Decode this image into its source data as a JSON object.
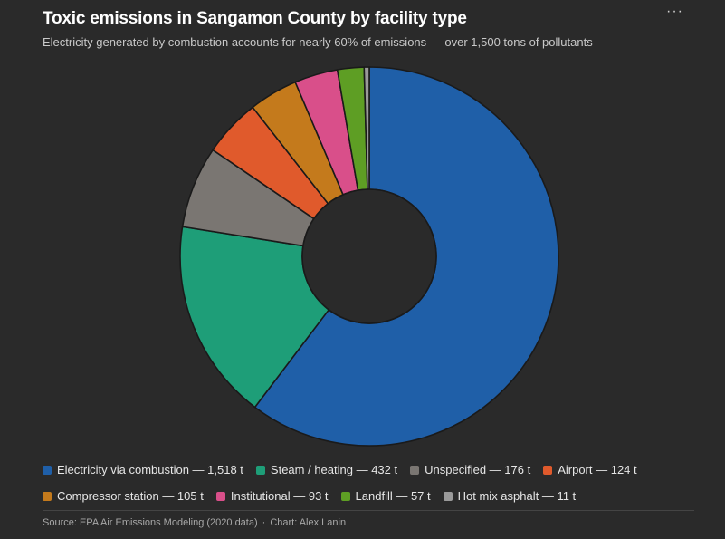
{
  "header": {
    "title": "Toxic emissions in Sangamon County by facility type",
    "subtitle": "Electricity generated by combustion accounts for nearly 60% of emissions — over 1,500 tons of pollutants",
    "menu_label": "···"
  },
  "chart_data": {
    "type": "pie",
    "variant": "donut",
    "title": "Toxic emissions in Sangamon County by facility type",
    "unit": "t",
    "categories": [
      "Electricity via combustion",
      "Steam / heating",
      "Unspecified",
      "Airport",
      "Compressor station",
      "Institutional",
      "Landfill",
      "Hot mix asphalt"
    ],
    "values": [
      1518,
      432,
      176,
      124,
      105,
      93,
      57,
      11
    ],
    "colors": [
      "#1f5fa8",
      "#1e9e78",
      "#7a7672",
      "#e05a2c",
      "#c47a1c",
      "#d94f8a",
      "#5e9e24",
      "#9a9a9a"
    ],
    "legend_position": "bottom"
  },
  "legend": [
    {
      "label": "Electricity via combustion — 1,518 t",
      "color": "#1f5fa8"
    },
    {
      "label": "Steam / heating — 432 t",
      "color": "#1e9e78"
    },
    {
      "label": "Unspecified — 176 t",
      "color": "#7a7672"
    },
    {
      "label": "Airport — 124 t",
      "color": "#e05a2c"
    },
    {
      "label": "Compressor station — 105 t",
      "color": "#c47a1c"
    },
    {
      "label": "Institutional — 93 t",
      "color": "#d94f8a"
    },
    {
      "label": "Landfill — 57 t",
      "color": "#5e9e24"
    },
    {
      "label": "Hot mix asphalt — 11 t",
      "color": "#9a9a9a"
    }
  ],
  "footer": {
    "source": "Source: EPA Air Emissions Modeling (2020 data)",
    "separator": "·",
    "credit": "Chart: Alex Lanin"
  }
}
